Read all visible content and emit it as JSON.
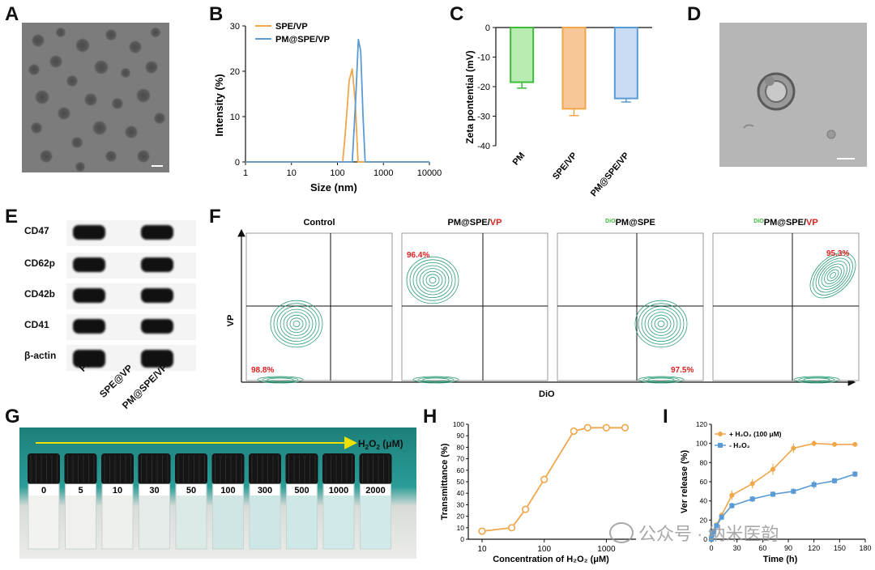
{
  "panels": {
    "A": "A",
    "B": "B",
    "C": "C",
    "D": "D",
    "E": "E",
    "F": "F",
    "G": "G",
    "H": "H",
    "I": "I"
  },
  "colors": {
    "orange": "#f0a64a",
    "blue": "#5b9bd5",
    "green": "#3dbb3d",
    "contour": "#2f9c7a",
    "red": "#e02020"
  },
  "panelB": {
    "xlabel": "Size (nm)",
    "ylabel": "Intensity (%)",
    "xticks": [
      "1",
      "10",
      "100",
      "1000",
      "10000"
    ],
    "yticks": [
      "0",
      "10",
      "20",
      "30"
    ],
    "legend": [
      "SPE/VP",
      "PM@SPE/VP"
    ]
  },
  "panelC": {
    "ylabel": "Zeta pontential (mV)",
    "yticks": [
      "0",
      "-10",
      "-20",
      "-30",
      "-40"
    ],
    "categories": [
      "PM",
      "SPE/VP",
      "PM@SPE/VP"
    ]
  },
  "panelE": {
    "proteins": [
      "CD47",
      "CD62p",
      "CD42b",
      "CD41",
      "β-actin"
    ],
    "lanes": [
      "PM",
      "SPE@VP",
      "PM@SPE/VP"
    ]
  },
  "panelF": {
    "titles": [
      {
        "pre": "",
        "main": "Control",
        "red": ""
      },
      {
        "pre": "",
        "main": "PM@SPE/",
        "red": "VP"
      },
      {
        "pre": "DiO",
        "main": "PM@SPE",
        "red": ""
      },
      {
        "pre": "DiO",
        "main": "PM@SPE/",
        "red": "VP"
      }
    ],
    "percentages": [
      "98.8%",
      "96.4%",
      "97.5%",
      "95.3%"
    ],
    "xlabel": "DiO",
    "ylabel": "VP"
  },
  "panelG": {
    "arrow_label_pre": "H",
    "arrow_label_sub": "2",
    "arrow_label_mid": "O",
    "arrow_label_sub2": "2",
    "arrow_label_post": " (μM)",
    "concentrations": [
      "0",
      "5",
      "10",
      "30",
      "50",
      "100",
      "300",
      "500",
      "1000",
      "2000"
    ]
  },
  "chart_data": [
    {
      "type": "line",
      "title": "",
      "xlabel": "Size (nm)",
      "ylabel": "Intensity (%)",
      "xscale": "log",
      "xlim": [
        1,
        10000
      ],
      "ylim": [
        0,
        30
      ],
      "series": [
        {
          "name": "SPE/VP",
          "x": [
            1,
            130,
            150,
            180,
            210,
            245,
            280,
            10000
          ],
          "y": [
            0,
            0,
            7,
            18,
            20.5,
            13,
            0,
            0
          ]
        },
        {
          "name": "PM@SPE/VP",
          "x": [
            1,
            210,
            250,
            285,
            320,
            360,
            400,
            10000
          ],
          "y": [
            0,
            0,
            14,
            27,
            24.5,
            10,
            0,
            0
          ]
        }
      ]
    },
    {
      "type": "bar",
      "title": "",
      "ylabel": "Zeta pontential (mV)",
      "categories": [
        "PM",
        "SPE/VP",
        "PM@SPE/VP"
      ],
      "values": [
        -18.5,
        -27.5,
        -24
      ],
      "errors": [
        2,
        2.3,
        1.2
      ],
      "ylim": [
        -40,
        0
      ]
    },
    {
      "type": "line",
      "title": "",
      "xlabel": "Concentration of H₂O₂ (μM)",
      "ylabel": "Transmittance (%)",
      "xscale": "log",
      "xticks": [
        "10",
        "100",
        "1000"
      ],
      "yticks": [
        "0",
        "10",
        "20",
        "30",
        "40",
        "50",
        "60",
        "70",
        "80",
        "90",
        "100"
      ],
      "xlim": [
        6,
        3000
      ],
      "ylim": [
        0,
        100
      ],
      "x": [
        10,
        30,
        50,
        100,
        300,
        500,
        1000,
        2000
      ],
      "y": [
        7,
        10,
        26,
        52,
        94,
        97,
        97,
        97
      ]
    },
    {
      "type": "line",
      "title": "",
      "xlabel": "Time (h)",
      "ylabel": "Ver release (%)",
      "xticks": [
        "0",
        "30",
        "60",
        "90",
        "120",
        "150",
        "180"
      ],
      "yticks": [
        "0",
        "20",
        "40",
        "60",
        "80",
        "100",
        "120"
      ],
      "xlim": [
        0,
        180
      ],
      "ylim": [
        0,
        120
      ],
      "series": [
        {
          "name": "+ H₂O₂ (100 μM)",
          "x": [
            0,
            1,
            3,
            6,
            12,
            24,
            48,
            72,
            96,
            120,
            144,
            168
          ],
          "y": [
            0,
            6,
            9,
            15,
            25,
            46,
            58,
            73,
            95,
            100,
            99,
            99
          ],
          "err": [
            0,
            1,
            2,
            2,
            3,
            5,
            5,
            6,
            5,
            3,
            2,
            2
          ]
        },
        {
          "name": "- H₂O₂",
          "x": [
            0,
            1,
            3,
            6,
            12,
            24,
            48,
            72,
            96,
            120,
            144,
            168
          ],
          "y": [
            0,
            5,
            8,
            14,
            23,
            35,
            42,
            47,
            50,
            57,
            61,
            68
          ],
          "err": [
            0,
            1,
            2,
            2,
            3,
            3,
            3,
            3,
            3,
            4,
            3,
            3
          ]
        }
      ]
    }
  ],
  "watermark": "公众号 · 纳米医韵"
}
